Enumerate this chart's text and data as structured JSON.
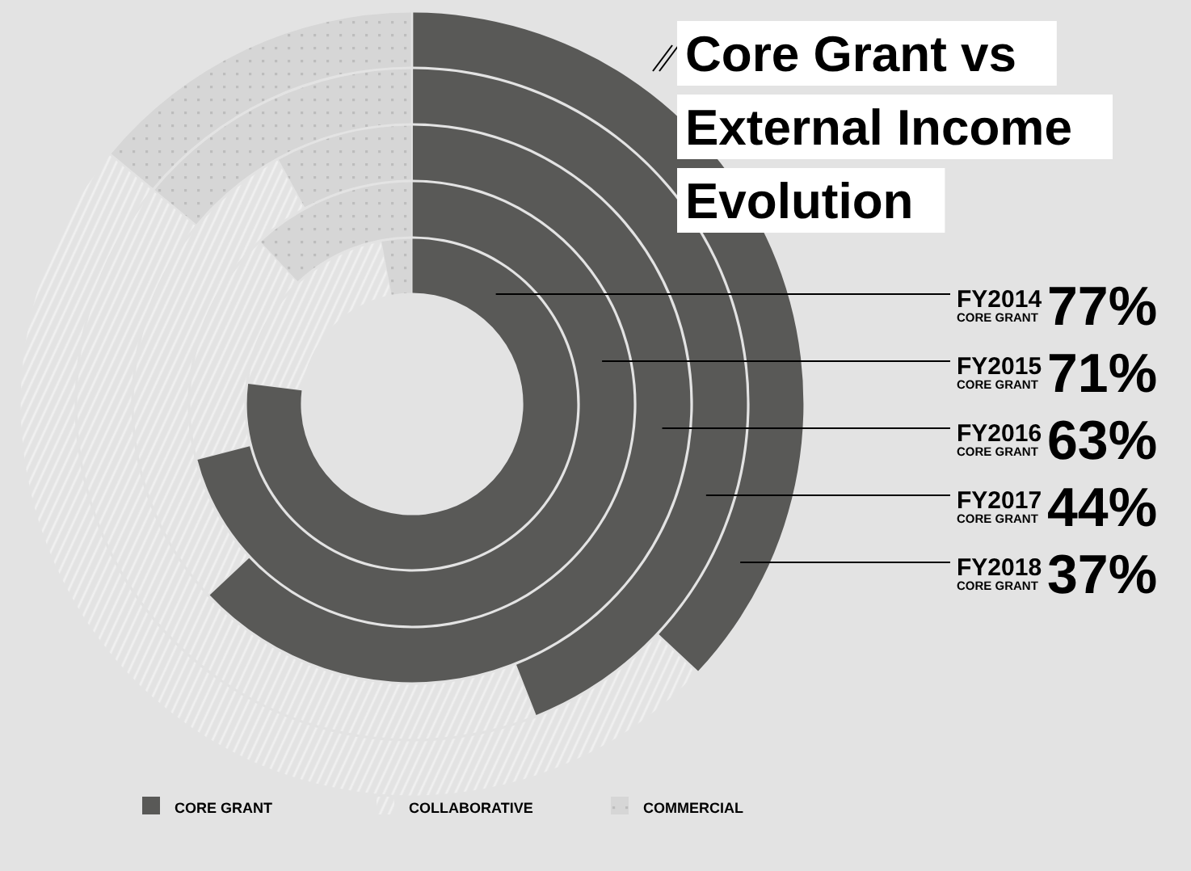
{
  "chart_data": {
    "type": "donut",
    "title": "Core Grant vs External Income Evolution",
    "categories": [
      "CORE GRANT",
      "COLLABORATIVE",
      "COMMERCIAL"
    ],
    "colors": [
      "#595957",
      "#f0f0f0",
      "#d6d6d6"
    ],
    "legend": "bottom",
    "annotations": [
      "77%",
      "71%",
      "63%",
      "44%",
      "37%"
    ],
    "series": [
      {
        "name": "FY2014",
        "values": [
          77,
          20,
          3
        ]
      },
      {
        "name": "FY2015",
        "values": [
          71,
          17,
          12
        ]
      },
      {
        "name": "FY2016",
        "values": [
          63,
          29,
          8
        ]
      },
      {
        "name": "FY2017",
        "values": [
          44,
          42,
          14
        ]
      },
      {
        "name": "FY2018",
        "values": [
          37,
          49,
          14
        ]
      }
    ]
  }
}
